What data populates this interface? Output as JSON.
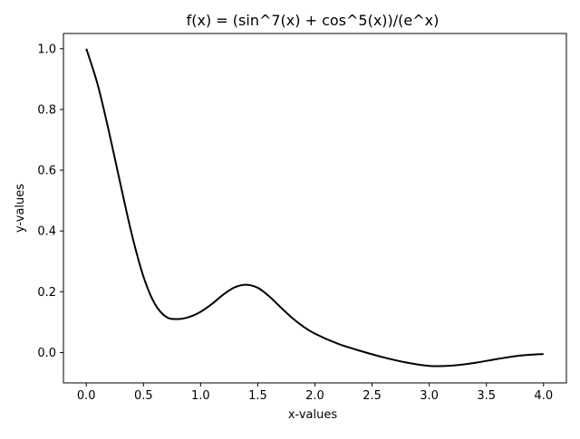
{
  "chart_data": {
    "type": "line",
    "title": "f(x) = (sin^7(x) + cos^5(x))/(e^x)",
    "xlabel": "x-values",
    "ylabel": "y-values",
    "xlim": [
      -0.2,
      4.2
    ],
    "ylim": [
      -0.1,
      1.05
    ],
    "xticks": [
      0.0,
      0.5,
      1.0,
      1.5,
      2.0,
      2.5,
      3.0,
      3.5,
      4.0
    ],
    "xtick_labels": [
      "0.0",
      "0.5",
      "1.0",
      "1.5",
      "2.0",
      "2.5",
      "3.0",
      "3.5",
      "4.0"
    ],
    "yticks": [
      0.0,
      0.2,
      0.4,
      0.6,
      0.8,
      1.0
    ],
    "ytick_labels": [
      "0.0",
      "0.2",
      "0.4",
      "0.6",
      "0.8",
      "1.0"
    ],
    "grid": false,
    "series": [
      {
        "color": "#000000",
        "x": [
          0.0,
          0.1,
          0.2,
          0.3,
          0.4,
          0.5,
          0.6,
          0.7,
          0.8,
          0.9,
          1.0,
          1.1,
          1.2,
          1.3,
          1.4,
          1.5,
          1.6,
          1.7,
          1.8,
          1.9,
          2.0,
          2.2,
          2.4,
          2.6,
          2.8,
          3.0,
          3.2,
          3.4,
          3.6,
          3.8,
          4.0
        ],
        "y": [
          1.0,
          0.881,
          0.724,
          0.552,
          0.386,
          0.25,
          0.16,
          0.117,
          0.11,
          0.117,
          0.134,
          0.16,
          0.191,
          0.215,
          0.223,
          0.213,
          0.185,
          0.149,
          0.114,
          0.085,
          0.062,
          0.029,
          0.005,
          -0.016,
          -0.033,
          -0.044,
          -0.043,
          -0.034,
          -0.021,
          -0.01,
          -0.005
        ]
      }
    ]
  }
}
